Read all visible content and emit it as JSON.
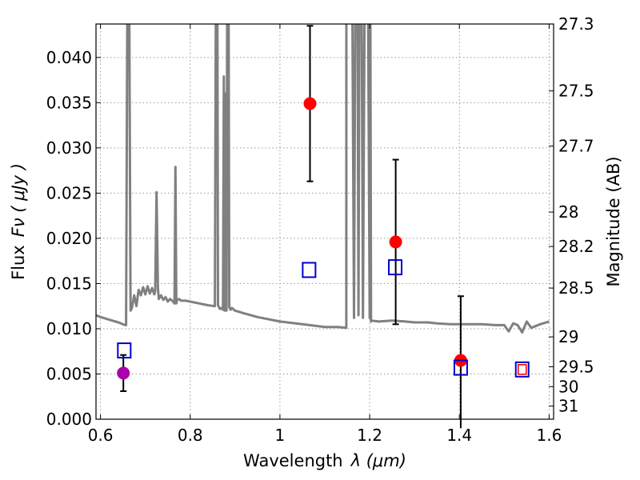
{
  "chart_data": {
    "type": "scatter",
    "xlabel": "Wavelength",
    "xlabel_symbol": "λ (μm)",
    "ylabel": "Flux",
    "ylabel_symbol": "Fν ( μJy )",
    "ylabel_right": "Magnitude (AB)",
    "xlim": [
      0.59,
      1.61
    ],
    "ylim": [
      0.0,
      0.0437
    ],
    "x_ticks": [
      0.6,
      0.8,
      1.0,
      1.2,
      1.4,
      1.6
    ],
    "x_tick_labels": [
      "0.6",
      "0.8",
      "1",
      "1.2",
      "1.4",
      "1.6"
    ],
    "y_ticks": [
      0.0,
      0.005,
      0.01,
      0.015,
      0.02,
      0.025,
      0.03,
      0.035,
      0.04
    ],
    "y_tick_labels": [
      "0.000",
      "0.005",
      "0.010",
      "0.015",
      "0.020",
      "0.025",
      "0.030",
      "0.035",
      "0.040"
    ],
    "right_axis_ticks": [
      {
        "label": "27.3",
        "flux": 0.0437
      },
      {
        "label": "27.5",
        "flux": 0.0363
      },
      {
        "label": "27.7",
        "flux": 0.0302
      },
      {
        "label": "28",
        "flux": 0.0229
      },
      {
        "label": "28.2",
        "flux": 0.0191
      },
      {
        "label": "28.5",
        "flux": 0.0145
      },
      {
        "label": "29",
        "flux": 0.0091
      },
      {
        "label": "29.5",
        "flux": 0.0058
      },
      {
        "label": "30",
        "flux": 0.0036
      },
      {
        "label": "31",
        "flux": 0.00145
      }
    ],
    "grid": true,
    "colors": {
      "spectrum": "#808080",
      "detection": "#ff0000",
      "model": "#0000cc",
      "purple": "#aa00aa",
      "red_square": "#ff0000",
      "errorbar": "#000000"
    },
    "spectrum": {
      "name": "",
      "x": [
        0.59,
        0.6,
        0.62,
        0.64,
        0.655,
        0.657,
        0.661,
        0.663,
        0.667,
        0.67,
        0.675,
        0.68,
        0.685,
        0.69,
        0.695,
        0.7,
        0.705,
        0.71,
        0.715,
        0.72,
        0.722,
        0.725,
        0.728,
        0.73,
        0.735,
        0.74,
        0.745,
        0.75,
        0.755,
        0.76,
        0.765,
        0.767,
        0.769,
        0.771,
        0.775,
        0.78,
        0.79,
        0.8,
        0.82,
        0.84,
        0.855,
        0.858,
        0.86,
        0.862,
        0.866,
        0.87,
        0.873,
        0.875,
        0.877,
        0.879,
        0.881,
        0.883,
        0.885,
        0.887,
        0.89,
        0.893,
        0.9,
        0.92,
        0.95,
        1.0,
        1.05,
        1.1,
        1.13,
        1.148,
        1.1482,
        1.152,
        1.156,
        1.16,
        1.165,
        1.169,
        1.172,
        1.175,
        1.178,
        1.181,
        1.185,
        1.19,
        1.195,
        1.2,
        1.201,
        1.203,
        1.205,
        1.22,
        1.25,
        1.28,
        1.3,
        1.33,
        1.35,
        1.38,
        1.4,
        1.42,
        1.45,
        1.48,
        1.5,
        1.51,
        1.52,
        1.53,
        1.54,
        1.55,
        1.56,
        1.58,
        1.6
      ],
      "y": [
        0.0115,
        0.0113,
        0.011,
        0.0107,
        0.0104,
        0.0104,
        0.06,
        0.06,
        0.012,
        0.0123,
        0.0137,
        0.0125,
        0.0143,
        0.0137,
        0.0146,
        0.0138,
        0.0147,
        0.0139,
        0.0145,
        0.0138,
        0.0142,
        0.0251,
        0.0145,
        0.0133,
        0.0137,
        0.0132,
        0.0135,
        0.013,
        0.0133,
        0.0131,
        0.0128,
        0.0279,
        0.0128,
        0.0132,
        0.0133,
        0.0131,
        0.0131,
        0.013,
        0.0128,
        0.0126,
        0.0125,
        0.06,
        0.06,
        0.0126,
        0.0122,
        0.0123,
        0.0121,
        0.0379,
        0.012,
        0.036,
        0.012,
        0.06,
        0.06,
        0.0124,
        0.0121,
        0.0123,
        0.012,
        0.0117,
        0.0113,
        0.0108,
        0.0105,
        0.0102,
        0.0102,
        0.0101,
        0.06,
        0.06,
        0.06,
        0.06,
        0.0112,
        0.06,
        0.06,
        0.0115,
        0.06,
        0.06,
        0.0112,
        0.06,
        0.06,
        0.0112,
        0.06,
        0.0108,
        0.0109,
        0.0108,
        0.0109,
        0.0108,
        0.0107,
        0.0107,
        0.0106,
        0.0105,
        0.0105,
        0.0105,
        0.0105,
        0.0104,
        0.0104,
        0.0097,
        0.0106,
        0.0104,
        0.0096,
        0.0108,
        0.0101,
        0.0105,
        0.0108
      ]
    },
    "series": [
      {
        "name": "",
        "marker": "circle",
        "color": "#ff0000",
        "points": [
          {
            "x": 1.067,
            "y": 0.0349,
            "err_low": 0.0086,
            "err_high": 0.0086
          },
          {
            "x": 1.258,
            "y": 0.0196,
            "err_low": 0.0091,
            "err_high": 0.0091
          },
          {
            "x": 1.403,
            "y": 0.0065,
            "err_low": 0.0075,
            "err_high": 0.0071
          }
        ]
      },
      {
        "name": "",
        "marker": "circle",
        "color": "#aa00aa",
        "points": [
          {
            "x": 0.651,
            "y": 0.0051,
            "err_low": 0.002,
            "err_high": 0.002
          }
        ]
      },
      {
        "name": "",
        "marker": "square-open",
        "color": "#0000cc",
        "points": [
          {
            "x": 0.653,
            "y": 0.0076
          },
          {
            "x": 1.065,
            "y": 0.0165
          },
          {
            "x": 1.257,
            "y": 0.0168
          },
          {
            "x": 1.403,
            "y": 0.0057
          },
          {
            "x": 1.54,
            "y": 0.0055
          }
        ]
      },
      {
        "name": "",
        "marker": "square-open-small",
        "color": "#ff0000",
        "points": [
          {
            "x": 1.54,
            "y": 0.0055
          }
        ]
      }
    ]
  }
}
